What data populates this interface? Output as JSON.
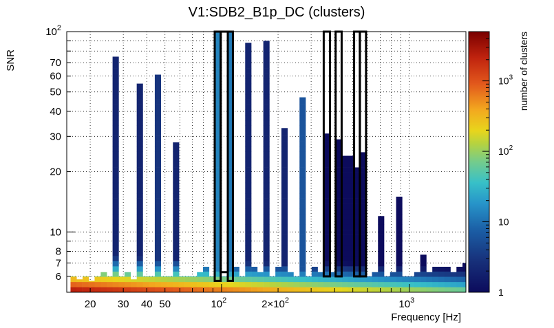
{
  "chart_data": {
    "type": "heatmap",
    "title": "V1:SDB2_B1p_DC (clusters)",
    "xlabel": "Frequency [Hz]",
    "ylabel": "SNR",
    "zlabel": "number of clusters",
    "x_scale": "log",
    "y_scale": "log",
    "z_scale": "log",
    "xlim": [
      15,
      2000
    ],
    "ylim": [
      5,
      100
    ],
    "zlim": [
      1,
      5000
    ],
    "grid": true,
    "x_ticks": [
      {
        "value": 20,
        "label": "20"
      },
      {
        "value": 30,
        "label": "30"
      },
      {
        "value": 40,
        "label": "40"
      },
      {
        "value": 50,
        "label": "50"
      },
      {
        "value": 100,
        "label": "10",
        "sup": "2"
      },
      {
        "value": 200,
        "label": "2×10",
        "sup": "2"
      },
      {
        "value": 1000,
        "label": "10",
        "sup": "3"
      }
    ],
    "y_ticks": [
      {
        "value": 6,
        "label": "6"
      },
      {
        "value": 7,
        "label": "7"
      },
      {
        "value": 8,
        "label": "8"
      },
      {
        "value": 10,
        "label": "10"
      },
      {
        "value": 20,
        "label": "20"
      },
      {
        "value": 30,
        "label": "30"
      },
      {
        "value": 40,
        "label": "40"
      },
      {
        "value": 50,
        "label": "50"
      },
      {
        "value": 60,
        "label": "60"
      },
      {
        "value": 70,
        "label": "70"
      },
      {
        "value": 100,
        "label": "10",
        "sup": "2"
      }
    ],
    "z_ticks": [
      {
        "value": 1,
        "label": "1"
      },
      {
        "value": 10,
        "label": "10"
      },
      {
        "value": 100,
        "label": "10",
        "sup": "2"
      },
      {
        "value": 1000,
        "label": "10",
        "sup": "3"
      }
    ],
    "columns": [
      {
        "f": 16.3,
        "max_snr": 6.0
      },
      {
        "f": 17.5,
        "max_snr": 5.8
      },
      {
        "f": 18.9,
        "max_snr": 6.0
      },
      {
        "f": 20.3,
        "max_snr": 5.7
      },
      {
        "f": 21.9,
        "max_snr": 6.0
      },
      {
        "f": 23.6,
        "max_snr": 6.3
      },
      {
        "f": 25.4,
        "max_snr": 6.0
      },
      {
        "f": 27.3,
        "max_snr": 75,
        "peak_count": 2
      },
      {
        "f": 29.4,
        "max_snr": 6.0
      },
      {
        "f": 31.6,
        "max_snr": 6.3
      },
      {
        "f": 34.1,
        "max_snr": 5.8
      },
      {
        "f": 36.7,
        "max_snr": 55,
        "peak_count": 2
      },
      {
        "f": 39.5,
        "max_snr": 6.0
      },
      {
        "f": 42.5,
        "max_snr": 6.0
      },
      {
        "f": 45.8,
        "max_snr": 61,
        "peak_count": 3
      },
      {
        "f": 49.3,
        "max_snr": 6.0
      },
      {
        "f": 53.1,
        "max_snr": 6.0
      },
      {
        "f": 57.2,
        "max_snr": 28,
        "peak_count": 2
      },
      {
        "f": 61.5,
        "max_snr": 6.0
      },
      {
        "f": 66.3,
        "max_snr": 6.0
      },
      {
        "f": 71.3,
        "max_snr": 6.0
      },
      {
        "f": 76.8,
        "max_snr": 6.3
      },
      {
        "f": 82.7,
        "max_snr": 6.7
      },
      {
        "f": 89.0,
        "max_snr": 6.0
      },
      {
        "f": 95.9,
        "max_snr": 100,
        "peak_count": 14
      },
      {
        "f": 103.2,
        "max_snr": 6.0
      },
      {
        "f": 111.1,
        "max_snr": 100,
        "peak_count": 12
      },
      {
        "f": 119.6,
        "max_snr": 6.7
      },
      {
        "f": 128.8,
        "max_snr": 6.0
      },
      {
        "f": 138.7,
        "max_snr": 88,
        "peak_count": 2
      },
      {
        "f": 149.4,
        "max_snr": 6.7
      },
      {
        "f": 160.8,
        "max_snr": 6.3
      },
      {
        "f": 173.2,
        "max_snr": 90,
        "peak_count": 2
      },
      {
        "f": 186.5,
        "max_snr": 6.0
      },
      {
        "f": 200.8,
        "max_snr": 6.7
      },
      {
        "f": 216.2,
        "max_snr": 33,
        "peak_count": 2
      },
      {
        "f": 232.8,
        "max_snr": 6.3
      },
      {
        "f": 250.7,
        "max_snr": 6.0
      },
      {
        "f": 270.0,
        "max_snr": 47,
        "peak_count": 6
      },
      {
        "f": 290.7,
        "max_snr": 6.0
      },
      {
        "f": 313.1,
        "max_snr": 6.7
      },
      {
        "f": 337.1,
        "max_snr": 6.3
      },
      {
        "f": 363.0,
        "max_snr": 31,
        "peak_count": 1
      },
      {
        "f": 390.9,
        "max_snr": 6.3
      },
      {
        "f": 420.9,
        "max_snr": 29,
        "peak_count": 1
      },
      {
        "f": 453.2,
        "max_snr": 24,
        "peak_count": 1
      },
      {
        "f": 488.0,
        "max_snr": 24,
        "peak_count": 1
      },
      {
        "f": 525.5,
        "max_snr": 21,
        "peak_count": 1
      },
      {
        "f": 565.9,
        "max_snr": 25,
        "peak_count": 1
      },
      {
        "f": 609.3,
        "max_snr": 6.0
      },
      {
        "f": 656.1,
        "max_snr": 6.3
      },
      {
        "f": 706.5,
        "max_snr": 12,
        "peak_count": 1
      },
      {
        "f": 760.7,
        "max_snr": 6.0
      },
      {
        "f": 819.1,
        "max_snr": 6.3
      },
      {
        "f": 882.0,
        "max_snr": 15,
        "peak_count": 1
      },
      {
        "f": 949.8,
        "max_snr": 6.0
      },
      {
        "f": 1022.7,
        "max_snr": 6.0
      },
      {
        "f": 1101.2,
        "max_snr": 6.3
      },
      {
        "f": 1185.8,
        "max_snr": 7.7,
        "peak_count": 1
      },
      {
        "f": 1276.9,
        "max_snr": 6.3
      },
      {
        "f": 1374.9,
        "max_snr": 6.7
      },
      {
        "f": 1480.5,
        "max_snr": 6.7
      },
      {
        "f": 1594.2,
        "max_snr": 6.7
      },
      {
        "f": 1716.6,
        "max_snr": 6.3
      },
      {
        "f": 1848.4,
        "max_snr": 6.7
      },
      {
        "f": 1990.4,
        "max_snr": 7.0
      }
    ],
    "outlined_bands": [
      {
        "f_min": 92,
        "f_max": 99,
        "snr_min": 5.7,
        "snr_max": 100
      },
      {
        "f_min": 99,
        "f_max": 108,
        "snr_min": 6.3,
        "snr_max": 100
      },
      {
        "f_min": 108,
        "f_max": 115,
        "snr_min": 5.7,
        "snr_max": 100
      },
      {
        "f_min": 350,
        "f_max": 378,
        "snr_min": 6.0,
        "snr_max": 100
      },
      {
        "f_min": 405,
        "f_max": 436,
        "snr_min": 6.0,
        "snr_max": 100
      },
      {
        "f_min": 508,
        "f_max": 545,
        "snr_min": 6.0,
        "snr_max": 100
      },
      {
        "f_min": 545,
        "f_max": 588,
        "snr_min": 6.0,
        "snr_max": 100
      }
    ]
  }
}
